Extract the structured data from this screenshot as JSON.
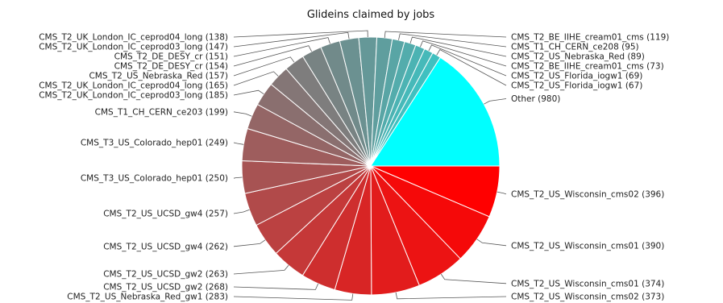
{
  "chart_data": {
    "type": "pie",
    "title": "Glideins claimed by jobs",
    "slices": [
      {
        "label": "CMS_T2_US_Wisconsin_cms02",
        "value": 396
      },
      {
        "label": "CMS_T2_US_Wisconsin_cms01",
        "value": 390
      },
      {
        "label": "CMS_T2_US_Wisconsin_cms01",
        "value": 374
      },
      {
        "label": "CMS_T2_US_Wisconsin_cms02",
        "value": 373
      },
      {
        "label": "CMS_T2_US_Nebraska_Red_gw1",
        "value": 283
      },
      {
        "label": "CMS_T2_US_UCSD_gw2",
        "value": 268
      },
      {
        "label": "CMS_T2_US_UCSD_gw2",
        "value": 263
      },
      {
        "label": "CMS_T2_US_UCSD_gw4",
        "value": 262
      },
      {
        "label": "CMS_T2_US_UCSD_gw4",
        "value": 257
      },
      {
        "label": "CMS_T3_US_Colorado_hep01",
        "value": 250
      },
      {
        "label": "CMS_T3_US_Colorado_hep01",
        "value": 249
      },
      {
        "label": "CMS_T1_CH_CERN_ce203",
        "value": 199
      },
      {
        "label": "CMS_T2_UK_London_IC_ceprod03_long",
        "value": 185
      },
      {
        "label": "CMS_T2_UK_London_IC_ceprod04_long",
        "value": 165
      },
      {
        "label": "CMS_T2_US_Nebraska_Red",
        "value": 157
      },
      {
        "label": "CMS_T2_DE_DESY_cr",
        "value": 154
      },
      {
        "label": "CMS_T2_DE_DESY_cr",
        "value": 151
      },
      {
        "label": "CMS_T2_UK_London_IC_ceprod03_long",
        "value": 147
      },
      {
        "label": "CMS_T2_UK_London_IC_ceprod04_long",
        "value": 138
      },
      {
        "label": "CMS_T2_BE_IIHE_cream01_cms",
        "value": 119
      },
      {
        "label": "CMS_T1_CH_CERN_ce208",
        "value": 95
      },
      {
        "label": "CMS_T2_US_Nebraska_Red",
        "value": 89
      },
      {
        "label": "CMS_T2_BE_IIHE_cream01_cms",
        "value": 73
      },
      {
        "label": "CMS_T2_US_Florida_iogw1",
        "value": 69
      },
      {
        "label": "CMS_T2_US_Florida_iogw1",
        "value": 67
      },
      {
        "label": "Other",
        "value": 980
      }
    ],
    "start_angle_deg": 0,
    "direction": "clockwise",
    "colors": {
      "first": "#ff0000",
      "middle": "#8a6f6f",
      "last_named": "#40c0c0",
      "other": "#00ffff",
      "slice_border": "#ffffff"
    }
  }
}
